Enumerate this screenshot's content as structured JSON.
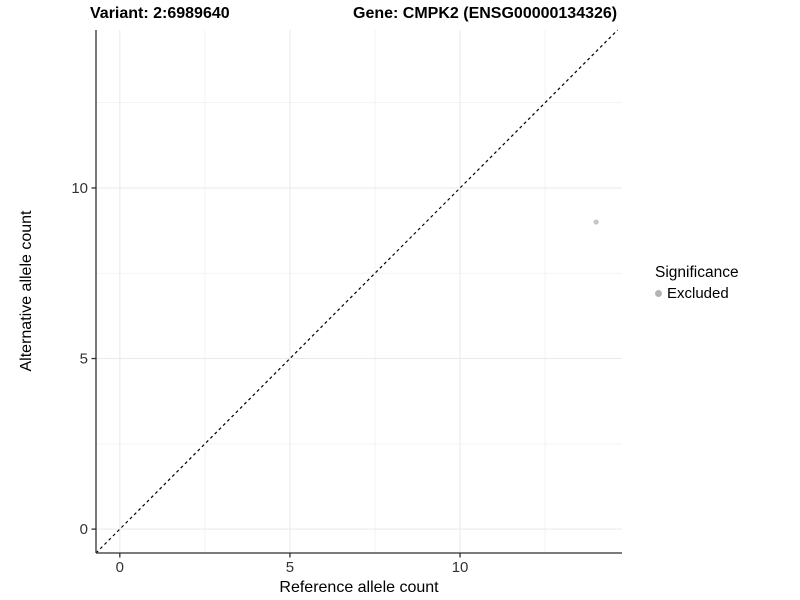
{
  "figure": {
    "titles": {
      "variant": "Variant: 2:6989640",
      "gene": "Gene: CMPK2 (ENSG00000134326)"
    }
  },
  "legend": {
    "title": "Significance",
    "items": [
      {
        "label": "Excluded",
        "color": "#b4b4b4"
      }
    ]
  },
  "chart_data": {
    "type": "scatter",
    "title": "Variant: 2:6989640 / Gene: CMPK2 (ENSG00000134326)",
    "xlabel": "Reference allele count",
    "ylabel": "Alternative allele count",
    "xlim": [
      -0.7,
      14.76
    ],
    "ylim": [
      -0.7,
      14.63
    ],
    "x_ticks": [
      0,
      5,
      10
    ],
    "y_ticks": [
      0,
      5,
      10
    ],
    "x_minor_ticks": [
      2.5,
      7.5,
      12.5
    ],
    "y_minor_ticks": [
      2.5,
      7.5,
      12.5
    ],
    "grid": "major+minor",
    "legend_position": "right",
    "reference_line": {
      "kind": "identity y=x",
      "style": "dashed",
      "color": "#000000"
    },
    "series": [
      {
        "name": "Excluded",
        "color": "#c6c6c6",
        "points": [
          {
            "x": 14,
            "y": 9
          }
        ]
      }
    ]
  },
  "style": {
    "grid_major_color": "#e9e9e9",
    "grid_minor_color": "#f3f3f3",
    "axis_line_color": "#2f2f2f",
    "tick_label_color": "#333333",
    "tick_label_size": 15,
    "point_radius": 2.6,
    "dash_pattern": "3,3"
  }
}
